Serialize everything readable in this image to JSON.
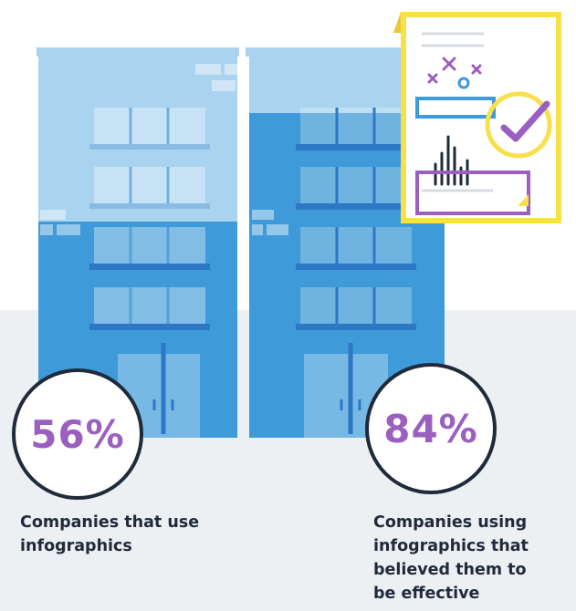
{
  "colors": {
    "accent_purple": "#9b5fc0",
    "dark_navy": "#1f2a3a",
    "building_blue": "#3e9ad8",
    "building_light": "#a9d3ef",
    "card_yellow": "#f7e04a",
    "ground_gray": "#edf0f3"
  },
  "icons": [
    "chart-icon",
    "checkmark-icon",
    "x-mark-icon"
  ],
  "stats": [
    {
      "value": "56%",
      "caption_lines": [
        "Companies that use",
        "infographics"
      ],
      "fill_fraction": 0.56
    },
    {
      "value": "84%",
      "caption_lines": [
        "Companies using",
        "infographics that",
        "believed them to",
        "be effective"
      ],
      "fill_fraction": 0.84
    }
  ]
}
